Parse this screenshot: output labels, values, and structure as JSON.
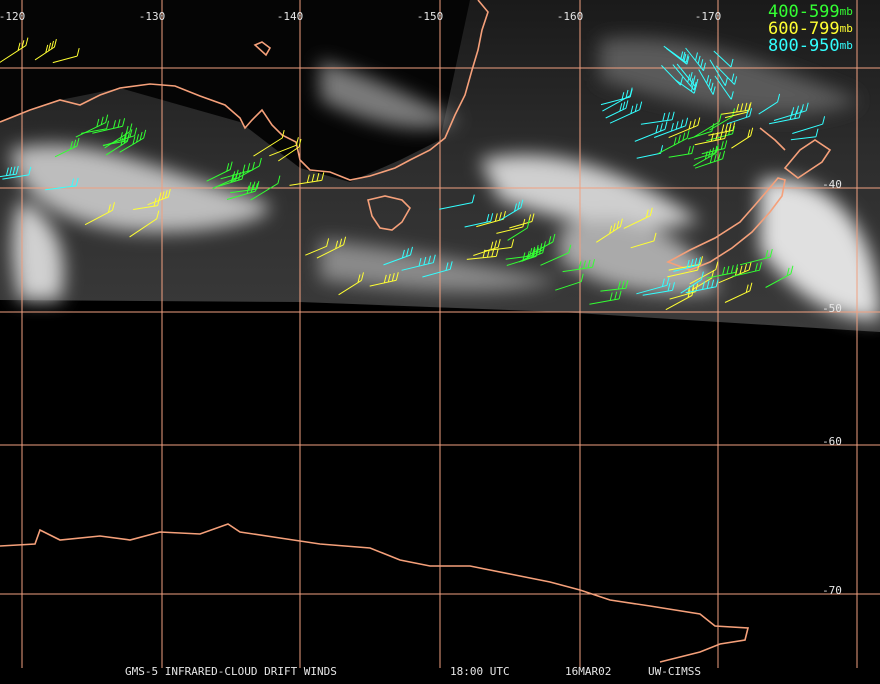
{
  "map": {
    "longitude_labels": [
      "-120",
      "-130",
      "-140",
      "-150",
      "-160",
      "-170"
    ],
    "latitude_labels": [
      "-40",
      "-50",
      "-60",
      "-70"
    ],
    "legend": [
      {
        "range": "400-599",
        "unit": "mb",
        "color": "#33ff33"
      },
      {
        "range": "600-799",
        "unit": "mb",
        "color": "#ffff33"
      },
      {
        "range": "800-950",
        "unit": "mb",
        "color": "#33ffff"
      }
    ]
  },
  "footer": {
    "title": "GMS-5 INFRARED-CLOUD DRIFT WINDS",
    "time": "18:00 UTC",
    "date": "16MAR02",
    "source": "UW-CIMSS"
  }
}
